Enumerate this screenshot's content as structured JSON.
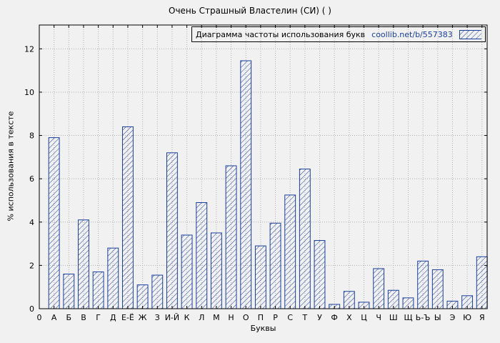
{
  "title": "Очень Страшный Властелин (СИ) ( )",
  "legend": {
    "label": "Диаграмма частоты использования букв",
    "link": "coollib.net/b/557383"
  },
  "axes": {
    "ylabel": "% использования в тексте",
    "xlabel": "Буквы",
    "origin_label": "0"
  },
  "colors": {
    "bar": "#1a3e9c",
    "background": "#f1f1f1",
    "grid": "#b0b0b0",
    "border": "#000000",
    "text": "#000000",
    "link": "#1a3e9c"
  },
  "chart_data": {
    "type": "bar",
    "title": "Очень Страшный Властелин (СИ) ( )",
    "legend_label": "Диаграмма частоты использования букв coollib.net/b/557383",
    "xlabel": "Буквы",
    "ylabel": "% использования в тексте",
    "categories": [
      "А",
      "Б",
      "В",
      "Г",
      "Д",
      "Е-Ё",
      "Ж",
      "З",
      "И-Й",
      "К",
      "Л",
      "М",
      "Н",
      "О",
      "П",
      "Р",
      "С",
      "Т",
      "У",
      "Ф",
      "Х",
      "Ц",
      "Ч",
      "Ш",
      "Щ",
      "Ь-Ъ",
      "Ы",
      "Э",
      "Ю",
      "Я"
    ],
    "values": [
      7.9,
      1.6,
      4.1,
      1.7,
      2.8,
      8.4,
      1.1,
      1.55,
      7.2,
      3.4,
      4.9,
      3.5,
      6.6,
      11.45,
      2.9,
      3.95,
      5.25,
      6.45,
      3.15,
      0.2,
      0.8,
      0.3,
      1.85,
      0.85,
      0.5,
      2.2,
      1.8,
      0.35,
      0.6,
      2.4
    ],
    "ylim": [
      0,
      13.1
    ],
    "yticks": [
      0,
      2,
      4,
      6,
      8,
      10,
      12
    ],
    "grid": true,
    "legend_position": "top-right",
    "bar_style": "hatched-diagonal"
  }
}
